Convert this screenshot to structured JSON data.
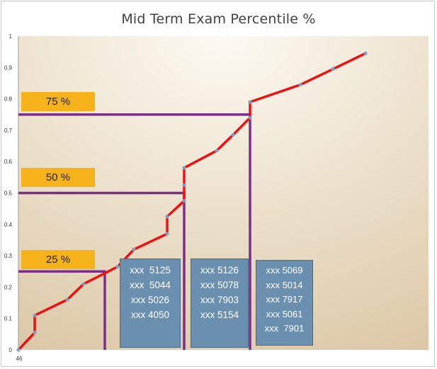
{
  "colors": {
    "line": "#ee1111",
    "points": "#7f9fbf",
    "percentile_lines": "#7b2e85",
    "label_fill": "#f6b21a",
    "box_fill": "#6b8fae",
    "plot_bg_center": "#fdfaf2",
    "plot_bg_edge": "#dcc8a7"
  },
  "chart_data": {
    "type": "line",
    "title": "Mid Term Exam Percentile   %",
    "ylim": [
      0,
      1
    ],
    "yticks": [
      "0",
      "0.1",
      "0.2",
      "0.3",
      "0.4",
      "0.5",
      "0.6",
      "0.7",
      "0.8",
      "0.9",
      "1"
    ],
    "xtick_first": "46",
    "grid": false,
    "series": [
      {
        "values": [
          0,
          0.055,
          0.11,
          0.16,
          0.21,
          0.265,
          0.32,
          0.37,
          0.425,
          0.475,
          0.525,
          0.58,
          0.635,
          0.685,
          0.74,
          0.79,
          0.845,
          0.895,
          0.945
        ]
      }
    ],
    "percentile_markers": [
      {
        "label": "25 %",
        "value": 0.25
      },
      {
        "label": "50 %",
        "value": 0.5
      },
      {
        "label": "75 %",
        "value": 0.75
      }
    ],
    "annotation_boxes": [
      {
        "lines": [
          "xxx  5125",
          "xxx  5044",
          "xxx 5026",
          "xxx 4050"
        ]
      },
      {
        "lines": [
          "xxx 5126",
          "xxx 5078",
          "xxx 7903",
          "xxx 5154"
        ]
      },
      {
        "lines": [
          "xxx 5069",
          "xxx 5014",
          "xxx 7917",
          "xxx 5061",
          "xxx  7901"
        ]
      }
    ]
  }
}
